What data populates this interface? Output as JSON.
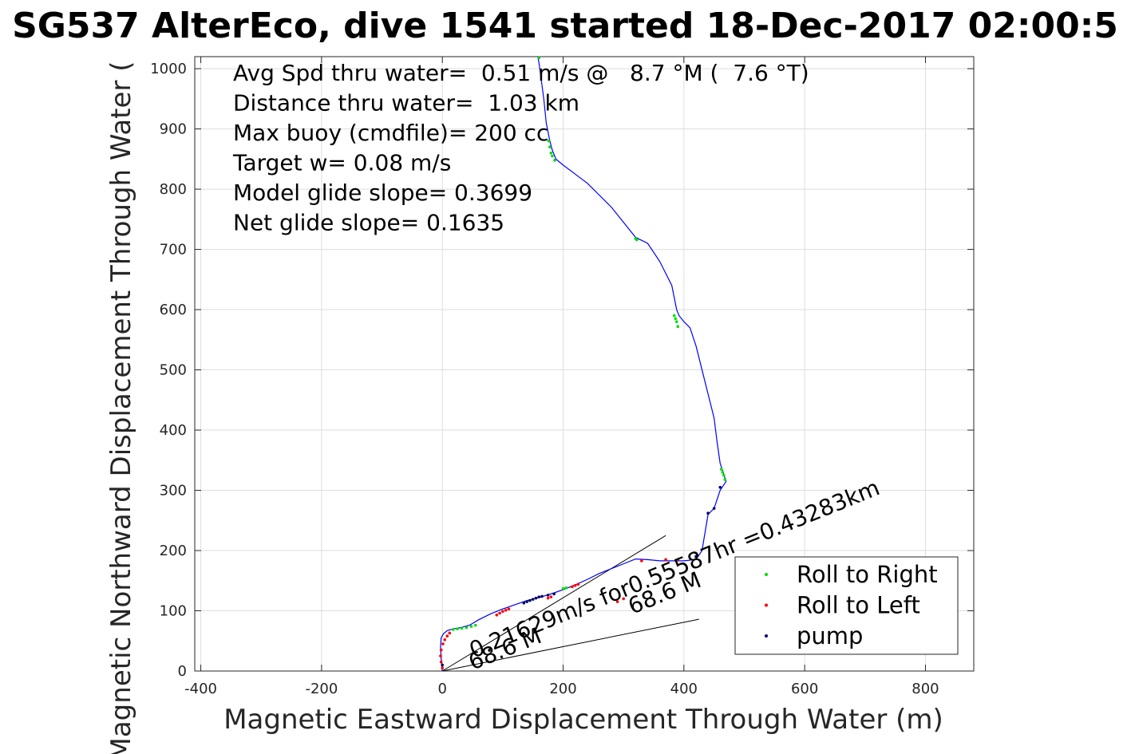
{
  "chart_data": {
    "type": "scatter",
    "title": "SG537 AlterEco, dive 1541 started 18-Dec-2017 02:00:5",
    "xlabel": "Magnetic Eastward Displacement Through Water (m)",
    "ylabel": "Magnetic Northward Displacement Through Water (",
    "xlim": [
      -410,
      880
    ],
    "ylim": [
      0,
      1020
    ],
    "xticks": [
      -400,
      -200,
      0,
      200,
      400,
      600,
      800
    ],
    "yticks": [
      0,
      100,
      200,
      300,
      400,
      500,
      600,
      700,
      800,
      900,
      1000
    ],
    "grid": true,
    "legend_position": "bottom-right",
    "colors": {
      "track": "#0000ff",
      "roll_right": "#00dd00",
      "roll_left": "#ff0000",
      "pump": "#000066",
      "overlay_line": "#000000",
      "grid": "#dedede"
    },
    "annotations": [
      "Avg Spd thru water=  0.51 m/s @   8.7 °M (  7.6 °T)",
      "Distance thru water=  1.03 km",
      "Max buoy (cmdfile)= 200 cc",
      "Target w= 0.08 m/s",
      "Model glide slope= 0.3699",
      "Net glide slope= 0.1635"
    ],
    "line_labels": {
      "current_speed": "0.21629m/s for0.55587hr =0.43283km",
      "heading_a": "68.6 M",
      "heading_b": "68.6 M"
    },
    "legend": [
      {
        "name": "Roll to Right",
        "color": "#00dd00"
      },
      {
        "name": "Roll to Left",
        "color": "#ff0000"
      },
      {
        "name": "pump",
        "color": "#000066"
      }
    ],
    "track": {
      "x": [
        0,
        -2,
        -3,
        -2,
        2,
        8,
        18,
        30,
        45,
        60,
        80,
        100,
        120,
        140,
        160,
        180,
        200,
        220,
        240,
        260,
        280,
        300,
        320,
        340,
        360,
        380,
        400,
        420,
        430,
        440,
        450,
        460,
        470,
        468,
        465,
        460,
        455,
        450,
        440,
        430,
        420,
        410,
        400,
        392,
        388,
        384,
        380,
        360,
        340,
        320,
        300,
        280,
        260,
        240,
        220,
        200,
        188,
        182,
        178,
        175,
        172,
        170,
        168,
        166,
        164,
        162,
        160,
        158
      ],
      "y": [
        0,
        20,
        40,
        55,
        62,
        67,
        70,
        72,
        76,
        85,
        95,
        103,
        110,
        117,
        122,
        128,
        135,
        143,
        152,
        162,
        170,
        178,
        186,
        185,
        183,
        183,
        183,
        185,
        200,
        260,
        270,
        300,
        315,
        320,
        330,
        345,
        380,
        420,
        460,
        500,
        540,
        570,
        580,
        590,
        600,
        620,
        640,
        680,
        710,
        720,
        745,
        770,
        790,
        810,
        825,
        840,
        850,
        865,
        880,
        895,
        910,
        930,
        950,
        965,
        980,
        995,
        1010,
        1020
      ]
    },
    "roll_right": {
      "x": [
        18,
        25,
        32,
        40,
        48,
        55,
        200,
        205,
        320,
        322,
        384,
        386,
        388,
        390,
        462,
        464,
        466,
        468,
        176,
        178,
        180,
        182,
        186,
        160
      ],
      "y": [
        69,
        70,
        71,
        72,
        74,
        76,
        137,
        138,
        718,
        716,
        590,
        585,
        580,
        572,
        335,
        330,
        325,
        318,
        880,
        870,
        860,
        855,
        848,
        1018
      ]
    },
    "roll_left": {
      "x": [
        0,
        -2,
        -3,
        -2,
        1,
        4,
        8,
        12,
        90,
        95,
        100,
        105,
        110,
        175,
        180,
        215,
        220,
        225,
        290,
        300,
        330,
        370,
        390
      ],
      "y": [
        5,
        15,
        25,
        35,
        45,
        52,
        58,
        63,
        93,
        96,
        99,
        101,
        103,
        121,
        123,
        140,
        142,
        144,
        115,
        120,
        183,
        185,
        185
      ]
    },
    "pump": {
      "x": [
        135,
        140,
        145,
        150,
        155,
        160,
        165,
        175,
        185,
        440,
        450,
        460,
        420,
        0
      ],
      "y": [
        113,
        115,
        117,
        119,
        121,
        123,
        124,
        126,
        128,
        262,
        270,
        305,
        190,
        10
      ]
    },
    "overlay_lines": [
      {
        "x": [
          0,
          370
        ],
        "y": [
          0,
          225
        ]
      },
      {
        "x": [
          0,
          425
        ],
        "y": [
          0,
          86
        ]
      }
    ]
  }
}
